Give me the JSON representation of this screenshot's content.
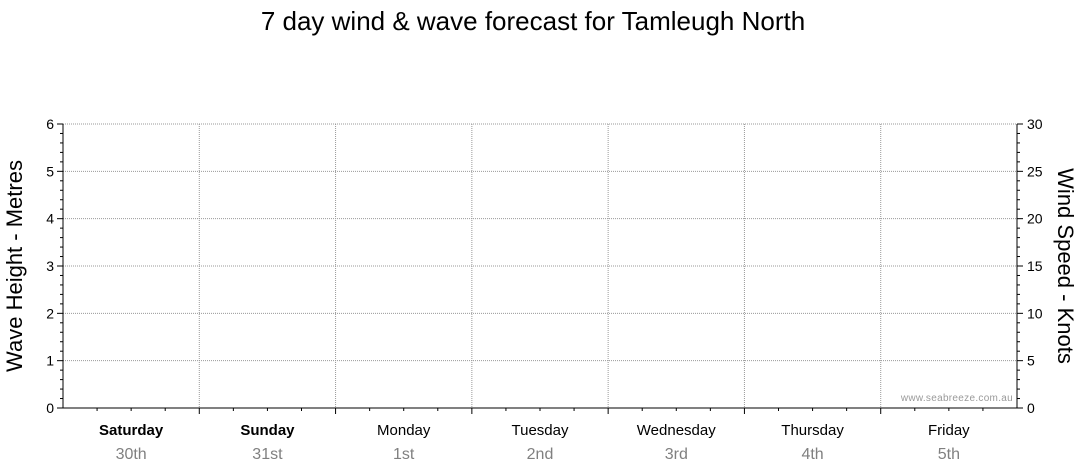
{
  "chart_data": {
    "type": "line",
    "title": "7 day wind & wave forecast for Tamleugh North",
    "ylabel_left": "Wave Height - Metres",
    "ylabel_right": "Wind Speed - Knots",
    "y_left_lim": [
      0,
      6
    ],
    "y_left_ticks": [
      "0",
      "1",
      "2",
      "3",
      "4",
      "5",
      "6"
    ],
    "y_right_lim": [
      0,
      30
    ],
    "y_right_ticks": [
      "0",
      "5",
      "10",
      "15",
      "20",
      "25",
      "30"
    ],
    "days": [
      {
        "name": "Saturday",
        "date": "30th",
        "weekend": true
      },
      {
        "name": "Sunday",
        "date": "31st",
        "weekend": true
      },
      {
        "name": "Monday",
        "date": "1st",
        "weekend": false
      },
      {
        "name": "Tuesday",
        "date": "2nd",
        "weekend": false
      },
      {
        "name": "Wednesday",
        "date": "3rd",
        "weekend": false
      },
      {
        "name": "Thursday",
        "date": "4th",
        "weekend": false
      },
      {
        "name": "Friday",
        "date": "5th",
        "weekend": false
      }
    ],
    "series": [],
    "grid": true,
    "watermark": "www.seabreeze.com.au"
  }
}
